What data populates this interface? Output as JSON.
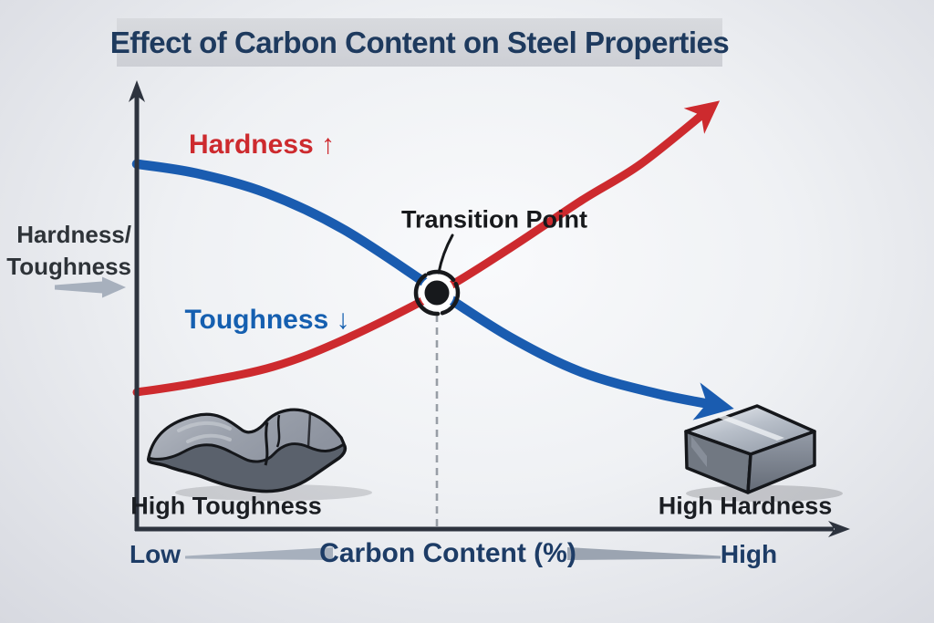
{
  "colors": {
    "hardness_red": "#cd2a2e",
    "toughness_blue": "#1a5cb0",
    "axis_dark": "#2d333e",
    "navy_text": "#1d3c66",
    "black_text": "#17191c",
    "guide_gray": "#8d939b",
    "accent_wedge_gray": "#a7b0bd",
    "title_navy": "#1e3a5e",
    "title_band_gray": "#d3d5da"
  },
  "chart_data": {
    "type": "line",
    "title": "Effect of Carbon Content on Steel Properties",
    "xlabel": "Carbon Content (%)",
    "ylabel": "Hardness/Toughness",
    "ylabel_lines": [
      "Hardness/",
      "Toughness"
    ],
    "x_endpoints": {
      "low": "Low",
      "high": "High"
    },
    "axis_ranges": {
      "x": [
        0,
        100
      ],
      "y": [
        0,
        100
      ]
    },
    "grid": false,
    "legend_position": "inline-curve-labels",
    "series": [
      {
        "name": "Toughness",
        "label": "Toughness ↓",
        "direction": "decreasing",
        "color": "#1a5cb0",
        "stroke_width": 10.5,
        "points": [
          [
            0,
            87.0
          ],
          [
            10,
            84.8
          ],
          [
            22,
            80.0
          ],
          [
            35,
            71.3
          ],
          [
            51,
            56.5
          ],
          [
            63,
            45.7
          ],
          [
            75,
            37.4
          ],
          [
            88,
            32.2
          ],
          [
            98.5,
            29.3
          ]
        ]
      },
      {
        "name": "Hardness",
        "label": "Hardness ↑",
        "direction": "increasing",
        "color": "#cd2a2e",
        "stroke_width": 9,
        "points": [
          [
            0,
            32.6
          ],
          [
            10,
            34.8
          ],
          [
            23,
            38.7
          ],
          [
            35,
            45.2
          ],
          [
            51,
            56.5
          ],
          [
            63,
            67.0
          ],
          [
            75,
            78.3
          ],
          [
            85,
            87.0
          ],
          [
            96.8,
            100.4
          ]
        ]
      }
    ],
    "annotations": [
      {
        "label": "Transition Point",
        "x": 50.6,
        "y": 56.5
      }
    ],
    "callouts": [
      {
        "label": "High Toughness",
        "position": "bottom-left",
        "illustration": "bent-metal-slab"
      },
      {
        "label": "High Hardness",
        "position": "bottom-right",
        "illustration": "metal-cube"
      }
    ]
  }
}
